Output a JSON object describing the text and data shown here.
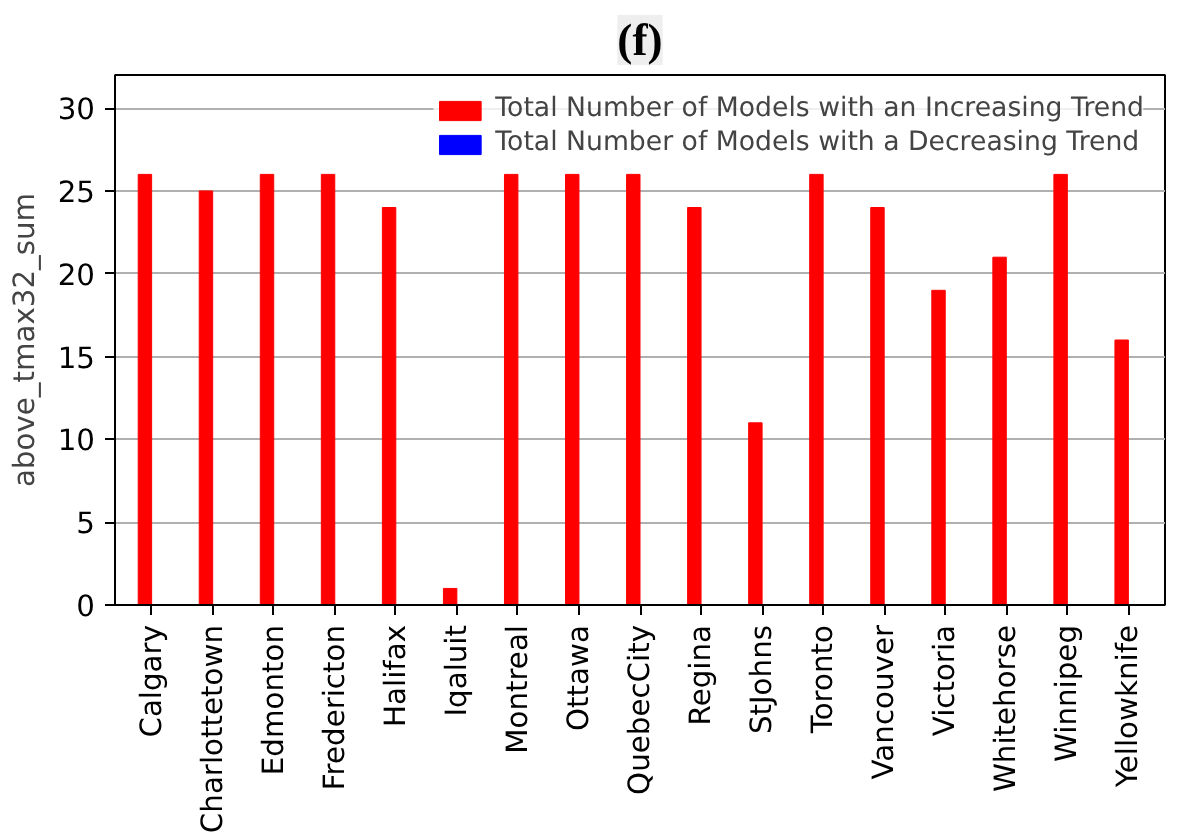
{
  "chart_data": {
    "type": "bar",
    "title": "(f)",
    "ylabel": "above_tmax32_sum",
    "categories": [
      "Calgary",
      "Charlottetown",
      "Edmonton",
      "Fredericton",
      "Halifax",
      "Iqaluit",
      "Montreal",
      "Ottawa",
      "QuebecCity",
      "Regina",
      "StJohns",
      "Toronto",
      "Vancouver",
      "Victoria",
      "Whitehorse",
      "Winnipeg",
      "Yellowknife"
    ],
    "series": [
      {
        "name": "Total Number of Models with an Increasing Trend",
        "color": "#ff0000",
        "values": [
          26,
          25,
          26,
          26,
          24,
          1,
          26,
          26,
          26,
          24,
          11,
          26,
          24,
          19,
          21,
          26,
          16
        ]
      },
      {
        "name": "Total Number of Models with a Decreasing Trend",
        "color": "#0000ff",
        "values": [
          0,
          0,
          0,
          0,
          0,
          0,
          0,
          0,
          0,
          0,
          0,
          0,
          0,
          0,
          0,
          0,
          0
        ]
      }
    ],
    "ylim": [
      0,
      32
    ],
    "yticks": [
      0,
      5,
      10,
      15,
      20,
      25,
      30
    ],
    "grid": "y",
    "legend": "top right"
  }
}
